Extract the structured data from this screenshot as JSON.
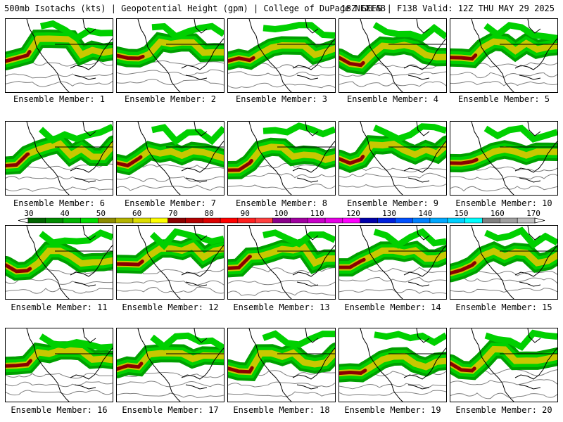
{
  "header": {
    "left": "500mb Isotachs (kts) | Geopotential Height (gpm) | College of DuPage NEXLAB",
    "right": "18Z GEFS | F138 Valid: 12Z THU MAY 29 2025"
  },
  "members": [
    "Ensemble Member: 1",
    "Ensemble Member: 2",
    "Ensemble Member: 3",
    "Ensemble Member: 4",
    "Ensemble Member: 5",
    "Ensemble Member: 6",
    "Ensemble Member: 7",
    "Ensemble Member: 8",
    "Ensemble Member: 9",
    "Ensemble Member: 10",
    "Ensemble Member: 11",
    "Ensemble Member: 12",
    "Ensemble Member: 13",
    "Ensemble Member: 14",
    "Ensemble Member: 15",
    "Ensemble Member: 16",
    "Ensemble Member: 17",
    "Ensemble Member: 18",
    "Ensemble Member: 19",
    "Ensemble Member: 20"
  ],
  "colorbar": {
    "ticks": [
      "30",
      "40",
      "50",
      "60",
      "70",
      "80",
      "90",
      "100",
      "110",
      "120",
      "130",
      "140",
      "150",
      "160",
      "170"
    ],
    "colors": [
      "#006400",
      "#008c00",
      "#00b400",
      "#00dc00",
      "#8c8c00",
      "#b4b400",
      "#dcdc00",
      "#ffff00",
      "#8b0000",
      "#b40000",
      "#dc0000",
      "#ff0000",
      "#ff2020",
      "#ff4040",
      "#8b008b",
      "#a000a0",
      "#c800c8",
      "#e600e6",
      "#ff00ff",
      "#0000aa",
      "#0020dc",
      "#0050ff",
      "#0080ff",
      "#00a8ff",
      "#00d0ff",
      "#00ffff",
      "#808080",
      "#a0a0a0",
      "#c0c0c0"
    ]
  },
  "map_colors": {
    "jet_outer": "#00a000",
    "jet_mid": "#00d000",
    "jet_yellow": "#c8c800",
    "jet_core": "#8b0000",
    "coast": "#000000",
    "height_contour": "#808080"
  }
}
